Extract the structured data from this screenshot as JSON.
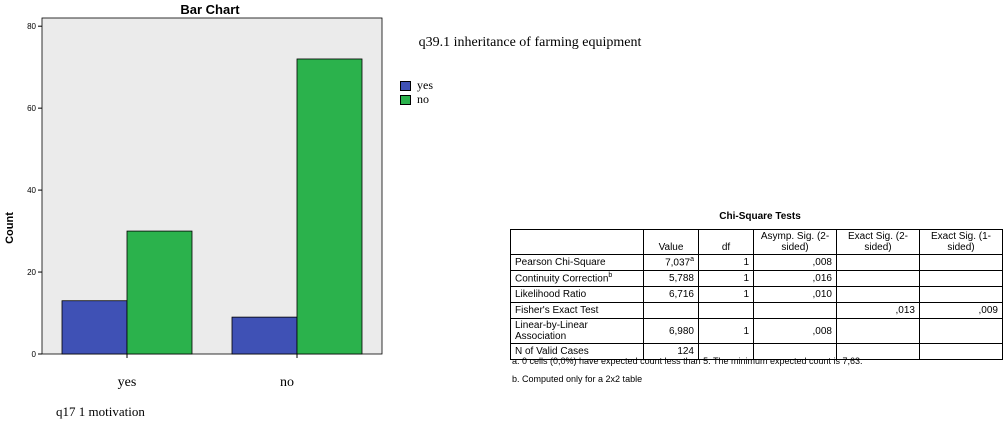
{
  "chart_data": {
    "type": "bar",
    "title": "Bar Chart",
    "xlabel": "q17 1 motivation",
    "ylabel": "Count",
    "categories": [
      "yes",
      "no"
    ],
    "series": [
      {
        "name": "yes",
        "values": [
          13,
          9
        ],
        "color": "#3F51B5"
      },
      {
        "name": "no",
        "values": [
          30,
          72
        ],
        "color": "#2BB24C"
      }
    ],
    "ylim": [
      0,
      82
    ],
    "yticks": [
      0,
      20,
      40,
      60,
      80
    ],
    "legend": {
      "title": "q39.1 inheritance of farming equipment",
      "placement": "right"
    },
    "plot_background": "#EBEBEB"
  },
  "table": {
    "title": "Chi-Square Tests",
    "headers": [
      "",
      "Value",
      "df",
      "Asymp. Sig. (2-sided)",
      "Exact Sig. (2-sided)",
      "Exact Sig. (1-sided)"
    ],
    "rows": [
      {
        "label": "Pearson Chi-Square",
        "sup": "a",
        "value": "7,037",
        "df": "1",
        "asymp": ",008",
        "exact2": "",
        "exact1": ""
      },
      {
        "label": "Continuity Correction",
        "sup": "b",
        "value": "5,788",
        "df": "1",
        "asymp": ",016",
        "exact2": "",
        "exact1": ""
      },
      {
        "label": "Likelihood Ratio",
        "sup": "",
        "value": "6,716",
        "df": "1",
        "asymp": ",010",
        "exact2": "",
        "exact1": ""
      },
      {
        "label": "Fisher's Exact Test",
        "sup": "",
        "value": "",
        "df": "",
        "asymp": "",
        "exact2": ",013",
        "exact1": ",009"
      },
      {
        "label": "Linear-by-Linear Association",
        "sup": "",
        "value": "6,980",
        "df": "1",
        "asymp": ",008",
        "exact2": "",
        "exact1": ""
      },
      {
        "label": "N of Valid Cases",
        "sup": "",
        "value": "124",
        "df": "",
        "asymp": "",
        "exact2": "",
        "exact1": ""
      }
    ],
    "footnotes": [
      "a. 0 cells (0,0%) have expected count less than 5. The minimum expected count is 7,63.",
      "b. Computed only for a 2x2 table"
    ]
  }
}
